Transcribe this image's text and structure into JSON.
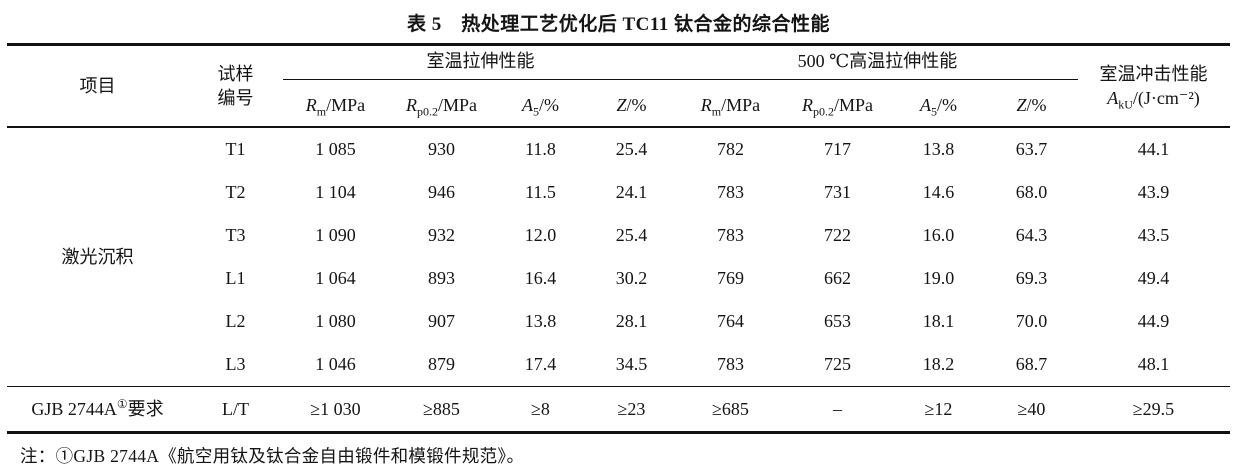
{
  "title": "表 5　热处理工艺优化后 TC11 钛合金的综合性能",
  "table": {
    "header": {
      "project": "项目",
      "sample_line1": "试样",
      "sample_line2": "编号",
      "group_rt": "室温拉伸性能",
      "group_ht": "500 ℃高温拉伸性能",
      "impact_title": "室温冲击性能",
      "impact_formula": {
        "sym": "A",
        "sub": "kU",
        "rest": "/(J·cm⁻²)"
      },
      "subcols": [
        {
          "sym": "R",
          "sub": "m",
          "rest": "/MPa"
        },
        {
          "sym": "R",
          "sub": "p0.2",
          "rest": "/MPa"
        },
        {
          "sym": "A",
          "sub": "5",
          "rest": "/%"
        },
        {
          "sym": "Z",
          "sub": "",
          "rest": "/%"
        },
        {
          "sym": "R",
          "sub": "m",
          "rest": "/MPa"
        },
        {
          "sym": "R",
          "sub": "p0.2",
          "rest": "/MPa"
        },
        {
          "sym": "A",
          "sub": "5",
          "rest": "/%"
        },
        {
          "sym": "Z",
          "sub": "",
          "rest": "/%"
        }
      ]
    },
    "group_label": "激光沉积",
    "rows": [
      {
        "id": "T1",
        "cells": [
          "1 085",
          "930",
          "11.8",
          "25.4",
          "782",
          "717",
          "13.8",
          "63.7",
          "44.1"
        ]
      },
      {
        "id": "T2",
        "cells": [
          "1 104",
          "946",
          "11.5",
          "24.1",
          "783",
          "731",
          "14.6",
          "68.0",
          "43.9"
        ]
      },
      {
        "id": "T3",
        "cells": [
          "1 090",
          "932",
          "12.0",
          "25.4",
          "783",
          "722",
          "16.0",
          "64.3",
          "43.5"
        ]
      },
      {
        "id": "L1",
        "cells": [
          "1 064",
          "893",
          "16.4",
          "30.2",
          "769",
          "662",
          "19.0",
          "69.3",
          "49.4"
        ]
      },
      {
        "id": "L2",
        "cells": [
          "1 080",
          "907",
          "13.8",
          "28.1",
          "764",
          "653",
          "18.1",
          "70.0",
          "44.9"
        ]
      },
      {
        "id": "L3",
        "cells": [
          "1 046",
          "879",
          "17.4",
          "34.5",
          "783",
          "725",
          "18.2",
          "68.7",
          "48.1"
        ]
      }
    ],
    "requirement_row": {
      "label_pre": "GJB 2744A",
      "label_sup": "①",
      "label_post": "要求",
      "sample": "L/T",
      "cells": [
        "≥1 030",
        "≥885",
        "≥8",
        "≥23",
        "≥685",
        "–",
        "≥12",
        "≥40",
        "≥29.5"
      ]
    }
  },
  "note": "注：①GJB 2744A《航空用钛及钛合金自由锻件和模锻件规范》。"
}
